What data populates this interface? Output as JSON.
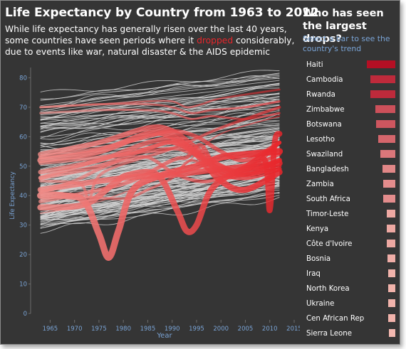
{
  "title": "Life Expectancy by Country from 1963 to 2012",
  "subtitle_pre": "While life expectancy has generally risen over the last 40 years, some countries have seen periods where it ",
  "subtitle_highlight": "dropped",
  "subtitle_post": " considerably, due to events like war, natural disaster & the AIDS epidemic",
  "sidebar": {
    "title": "Who has seen the largest drops?",
    "hint": "Select a bar to see the country's trend"
  },
  "colors": {
    "background": "#353535",
    "gray_line": "#d0d0d0",
    "highlight_red": "#e8262b",
    "axis_blue": "#7aa4d6",
    "bar_dark": "#b40f24",
    "bar_light": "#f3b8b0"
  },
  "chart_data": [
    {
      "type": "line",
      "title": "",
      "xlabel": "Year",
      "ylabel": "Life Expectancy",
      "xlim": [
        1961,
        2015
      ],
      "ylim": [
        0,
        83
      ],
      "x_ticks": [
        1965,
        1970,
        1975,
        1980,
        1985,
        1990,
        1995,
        2000,
        2005,
        2010,
        2015
      ],
      "y_ticks": [
        0,
        10,
        20,
        30,
        40,
        50,
        60,
        70,
        80
      ],
      "grid": false,
      "background_series_count": 180,
      "background_range": {
        "start_1963": [
          29,
          74
        ],
        "end_2012": [
          42,
          83
        ]
      },
      "highlighted_series": [
        {
          "x": [
            1963,
            1968,
            1972,
            1975,
            1977,
            1979,
            1982,
            1988,
            1995,
            2000,
            2005,
            2012
          ],
          "y": [
            40,
            40,
            38,
            27,
            19,
            28,
            42,
            47,
            50,
            53,
            54,
            55
          ]
        },
        {
          "x": [
            1963,
            1972,
            1978,
            1981,
            1987,
            1991,
            1993,
            1995,
            1998,
            2003,
            2008,
            2012
          ],
          "y": [
            36,
            37,
            44,
            47,
            47,
            35,
            28,
            30,
            42,
            48,
            50,
            51
          ]
        },
        {
          "x": [
            1963,
            1980,
            1990,
            1995,
            2000,
            2005,
            2009,
            2010,
            2011,
            2012
          ],
          "y": [
            42,
            46,
            47,
            48,
            49,
            50,
            52,
            35,
            58,
            61
          ]
        },
        {
          "x": [
            1963,
            1975,
            1985,
            1990,
            1995,
            2000,
            2005,
            2012
          ],
          "y": [
            52,
            55,
            61,
            60,
            54,
            45,
            42,
            48
          ]
        },
        {
          "x": [
            1963,
            1975,
            1985,
            1990,
            1995,
            2000,
            2005,
            2012
          ],
          "y": [
            54,
            58,
            63,
            62,
            56,
            50,
            48,
            52
          ]
        },
        {
          "x": [
            1963,
            1975,
            1985,
            1990,
            1995,
            2000,
            2005,
            2012
          ],
          "y": [
            48,
            52,
            58,
            59,
            55,
            48,
            46,
            49
          ]
        },
        {
          "x": [
            1963,
            1975,
            1985,
            1990,
            1995,
            2000,
            2005,
            2012
          ],
          "y": [
            46,
            50,
            56,
            58,
            54,
            49,
            47,
            50
          ]
        },
        {
          "x": [
            1963,
            1971,
            1973,
            1976,
            1990,
            2000,
            2012
          ],
          "y": [
            45,
            44,
            39,
            48,
            56,
            63,
            70
          ]
        },
        {
          "x": [
            1963,
            1980,
            1990,
            1993,
            1996,
            2000,
            2005,
            2012
          ],
          "y": [
            38,
            44,
            52,
            53,
            57,
            47,
            48,
            58
          ]
        },
        {
          "x": [
            1963,
            1975,
            1985,
            1990,
            1995,
            2000,
            2005,
            2012
          ],
          "y": [
            53,
            56,
            60,
            62,
            60,
            55,
            52,
            58
          ]
        },
        {
          "x": [
            1963,
            1975,
            1990,
            1995,
            2000,
            2012
          ],
          "y": [
            34,
            38,
            48,
            54,
            61,
            67
          ]
        },
        {
          "x": [
            1963,
            1970,
            1975,
            1980,
            1985,
            1990,
            1995,
            2000,
            2012
          ],
          "y": [
            41,
            45,
            49,
            52,
            53,
            48,
            45,
            46,
            54
          ]
        },
        {
          "x": [
            1963,
            1975,
            1985,
            1990,
            1995,
            2000,
            2005,
            2012
          ],
          "y": [
            46,
            52,
            56,
            58,
            54,
            48,
            50,
            58
          ]
        },
        {
          "x": [
            1963,
            1975,
            1985,
            1990,
            1993,
            1996,
            2000,
            2012
          ],
          "y": [
            70,
            71,
            72,
            72,
            70,
            71,
            73,
            76
          ]
        },
        {
          "x": [
            1963,
            1975,
            1985,
            1990,
            1994,
            1998,
            2005,
            2012
          ],
          "y": [
            70,
            71,
            71,
            70,
            68,
            69,
            70,
            72
          ]
        },
        {
          "x": [
            1963,
            1975,
            1985,
            1990,
            1994,
            1998,
            2005,
            2012
          ],
          "y": [
            68,
            69,
            69,
            68,
            66,
            67,
            66,
            68
          ]
        },
        {
          "x": [
            1963,
            1975,
            1985,
            1990,
            1993,
            2000,
            2005,
            2012
          ],
          "y": [
            51,
            53,
            55,
            56,
            55,
            50,
            47,
            52
          ]
        },
        {
          "x": [
            1963,
            1970,
            1980,
            1985,
            1990,
            1994,
            2000,
            2012
          ],
          "y": [
            42,
            40,
            39,
            42,
            46,
            52,
            47,
            49
          ]
        }
      ]
    },
    {
      "type": "bar",
      "title": "Who has seen the largest drops?",
      "categories": [
        "Haiti",
        "Cambodia",
        "Rwanda",
        "Zimbabwe",
        "Botswana",
        "Lesotho",
        "Swaziland",
        "Bangladesh",
        "Zambia",
        "South Africa",
        "Timor-Leste",
        "Kenya",
        "Côte d'Ivoire",
        "Bosnia",
        "Iraq",
        "North Korea",
        "Ukraine",
        "Cen African Rep",
        "Sierra Leone"
      ],
      "values": [
        40,
        35,
        35,
        28,
        27,
        24,
        21,
        18,
        17,
        17,
        12,
        12,
        12,
        11,
        10,
        10,
        10,
        10,
        9
      ],
      "orientation": "horizontal"
    }
  ]
}
